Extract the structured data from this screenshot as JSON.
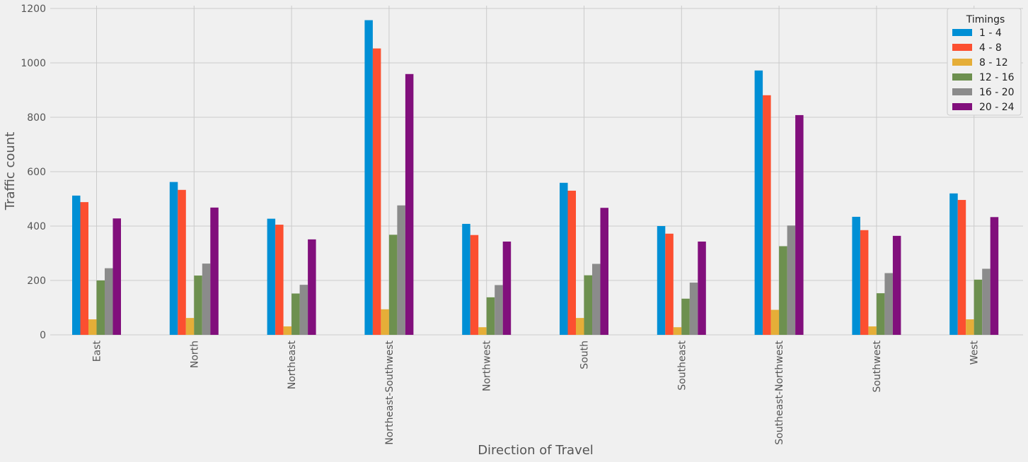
{
  "chart_data": {
    "type": "bar",
    "categories": [
      "East",
      "North",
      "Northeast",
      "Northeast-Southwest",
      "Northwest",
      "South",
      "Southeast",
      "Southeast-Northwest",
      "Southwest",
      "West"
    ],
    "series": [
      {
        "name": "1 - 4",
        "color": "#008fd5",
        "values": [
          512,
          562,
          427,
          1157,
          408,
          559,
          400,
          972,
          434,
          520
        ]
      },
      {
        "name": "4 - 8",
        "color": "#fc4f30",
        "values": [
          488,
          533,
          405,
          1053,
          367,
          530,
          372,
          881,
          385,
          496
        ]
      },
      {
        "name": "8 - 12",
        "color": "#e5ae38",
        "values": [
          57,
          62,
          31,
          94,
          28,
          62,
          28,
          92,
          31,
          57
        ]
      },
      {
        "name": "12 - 16",
        "color": "#6d904f",
        "values": [
          200,
          218,
          152,
          368,
          138,
          219,
          133,
          326,
          153,
          203
        ]
      },
      {
        "name": "16 - 20",
        "color": "#8b8b8b",
        "values": [
          245,
          262,
          184,
          476,
          183,
          261,
          192,
          402,
          227,
          243
        ]
      },
      {
        "name": "20 - 24",
        "color": "#810f7c",
        "values": [
          428,
          468,
          351,
          959,
          343,
          467,
          343,
          808,
          364,
          433
        ]
      }
    ],
    "xlabel": "Direction of Travel",
    "ylabel": "Traffic count",
    "ylim": [
      0,
      1200
    ],
    "yticks": [
      0,
      200,
      400,
      600,
      800,
      1000,
      1200
    ],
    "legend_title": "Timings",
    "legend_position": "top-right",
    "grid": true,
    "background": "#f0f0f0",
    "grid_color": "#cbcbcb"
  }
}
